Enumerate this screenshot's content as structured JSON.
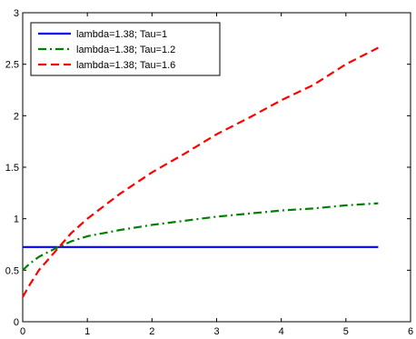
{
  "chart_data": {
    "type": "line",
    "title": "",
    "xlabel": "",
    "ylabel": "",
    "xlim": [
      0,
      6
    ],
    "ylim": [
      0,
      3
    ],
    "x_ticks": [
      0,
      1,
      2,
      3,
      4,
      5,
      6
    ],
    "x_tick_labels": [
      "0",
      "1",
      "2",
      "3",
      "4",
      "5",
      "6"
    ],
    "y_ticks": [
      0,
      0.5,
      1,
      1.5,
      2,
      2.5,
      3
    ],
    "y_tick_labels": [
      "0",
      "0.5",
      "1",
      "1.5",
      "2",
      "2.5",
      "3"
    ],
    "grid": false,
    "legend_position": "top-left",
    "series": [
      {
        "name": "lambda=1.38; Tau=1",
        "color": "#0000ff",
        "line_style": "solid",
        "x": [
          0,
          0.5,
          1,
          1.5,
          2,
          2.5,
          3,
          3.5,
          4,
          4.5,
          5,
          5.5
        ],
        "y": [
          0.725,
          0.725,
          0.725,
          0.725,
          0.725,
          0.725,
          0.725,
          0.725,
          0.725,
          0.725,
          0.725,
          0.725
        ]
      },
      {
        "name": "lambda=1.38; Tau=1.2",
        "color": "#008000",
        "line_style": "dash-dot",
        "x": [
          0,
          0.1,
          0.25,
          0.5,
          0.75,
          1,
          1.5,
          2,
          2.5,
          3,
          3.5,
          4,
          4.5,
          5,
          5.5
        ],
        "y": [
          0.5,
          0.56,
          0.63,
          0.71,
          0.78,
          0.83,
          0.89,
          0.94,
          0.98,
          1.02,
          1.05,
          1.08,
          1.1,
          1.13,
          1.15
        ]
      },
      {
        "name": "lambda=1.38; Tau=1.6",
        "color": "#ff0000",
        "line_style": "dashed",
        "x": [
          0,
          0.1,
          0.25,
          0.5,
          0.75,
          1,
          1.5,
          2,
          2.5,
          3,
          3.5,
          4,
          4.5,
          5,
          5.5
        ],
        "y": [
          0.24,
          0.35,
          0.5,
          0.68,
          0.86,
          1.0,
          1.24,
          1.45,
          1.63,
          1.82,
          1.98,
          2.15,
          2.3,
          2.5,
          2.66
        ]
      }
    ]
  }
}
